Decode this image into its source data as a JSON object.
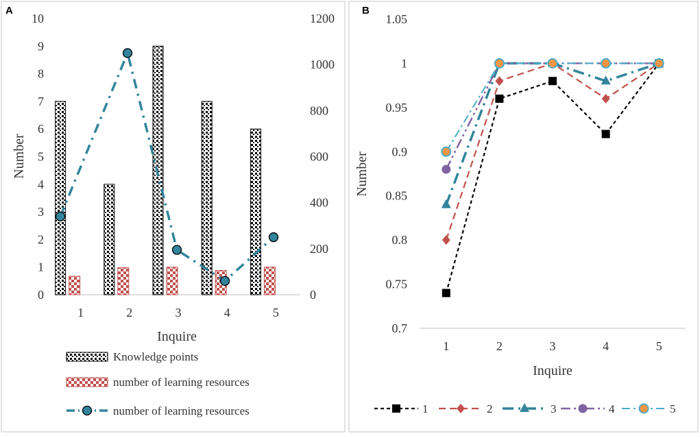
{
  "chart_data": [
    {
      "type": "bar",
      "panel_label": "A",
      "categories": [
        "1",
        "2",
        "3",
        "4",
        "5"
      ],
      "xlabel": "Inquire",
      "ylabel": "Number",
      "ylim": [
        0,
        10
      ],
      "yticks": [
        "0",
        "1",
        "2",
        "3",
        "4",
        "5",
        "6",
        "7",
        "8",
        "9",
        "10"
      ],
      "y2lim": [
        0,
        1200
      ],
      "y2ticks": [
        "0",
        "200",
        "400",
        "600",
        "800",
        "1000",
        "1200"
      ],
      "legend_position": "bottom",
      "series": [
        {
          "name": "Knowledge points",
          "kind": "bar",
          "axis": "left",
          "values": [
            7,
            4,
            9,
            7,
            6
          ],
          "color": "#000000"
        },
        {
          "name": "number of learning resources",
          "kind": "bar",
          "axis": "left",
          "values": [
            0.67,
            0.98,
            1.0,
            0.88,
            1.0
          ],
          "color": "#c0504d"
        },
        {
          "name": "number of learning resources",
          "kind": "line",
          "axis": "right",
          "values": [
            340,
            1050,
            195,
            60,
            250
          ],
          "color": "#31849b"
        }
      ]
    },
    {
      "type": "line",
      "panel_label": "B",
      "categories": [
        "1",
        "2",
        "3",
        "4",
        "5"
      ],
      "xlabel": "Inquire",
      "ylabel": "Number",
      "ylim": [
        0.7,
        1.05
      ],
      "yticks": [
        "0.7",
        "0.75",
        "0.8",
        "0.85",
        "0.9",
        "0.95",
        "1",
        "1.05"
      ],
      "legend_position": "bottom",
      "series": [
        {
          "name": "1",
          "values": [
            0.74,
            0.96,
            0.98,
            0.92,
            1.0
          ],
          "color": "#000000",
          "marker": "square"
        },
        {
          "name": "2",
          "values": [
            0.8,
            0.98,
            1.0,
            0.96,
            1.0
          ],
          "color": "#c0504d",
          "marker": "diamond"
        },
        {
          "name": "3",
          "values": [
            0.84,
            1.0,
            1.0,
            0.98,
            1.0
          ],
          "color": "#31849b",
          "marker": "triangle"
        },
        {
          "name": "4",
          "values": [
            0.88,
            1.0,
            1.0,
            1.0,
            1.0
          ],
          "color": "#8064a2",
          "marker": "circle"
        },
        {
          "name": "5",
          "values": [
            0.9,
            1.0,
            1.0,
            1.0,
            1.0
          ],
          "color": "#4bacc6",
          "marker": "circle-orange",
          "marker_fill": "#f79646"
        }
      ]
    }
  ]
}
